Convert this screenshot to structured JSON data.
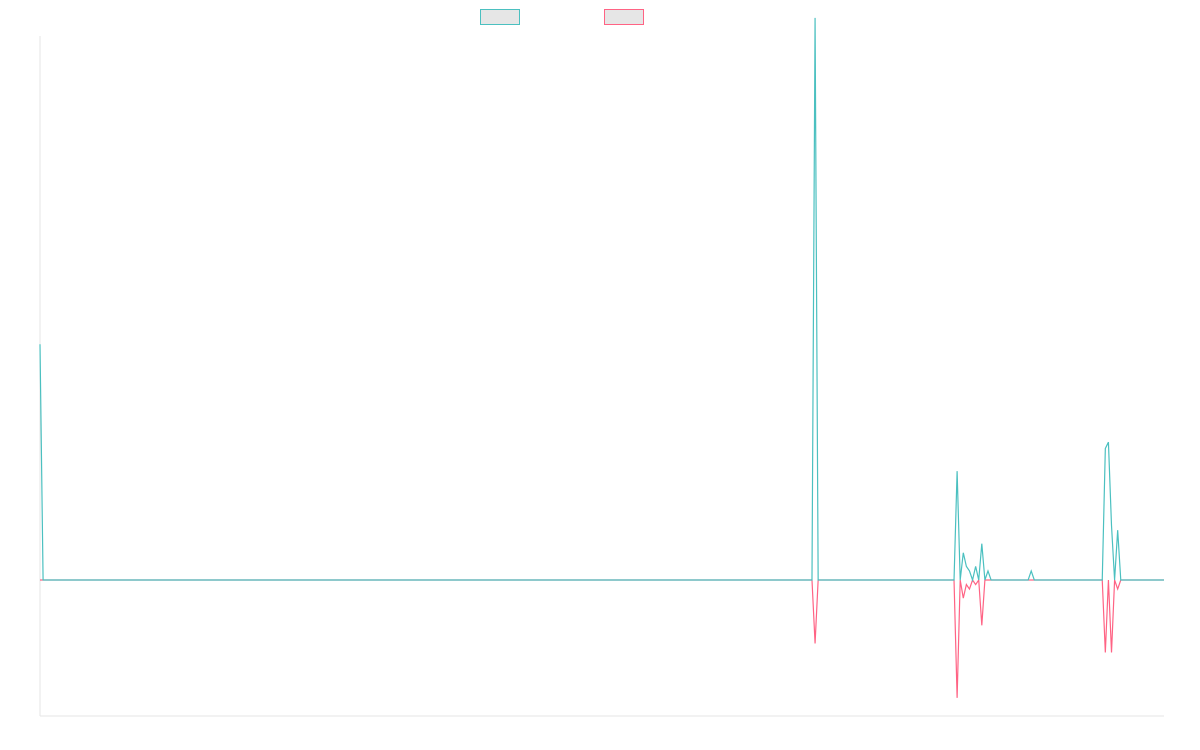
{
  "chart_data": {
    "type": "line",
    "title": "",
    "xlabel": "",
    "ylabel": "",
    "grid": false,
    "legend_position": "top-center",
    "x_count": 365,
    "ylim": [
      -15,
      60
    ],
    "series": [
      {
        "name": "",
        "color": "#4bc0c0",
        "fill": "#e6e6e6",
        "points": [
          [
            0,
            26
          ],
          [
            1,
            0
          ],
          [
            250,
            0
          ],
          [
            251,
            62
          ],
          [
            252,
            0
          ],
          [
            296,
            0
          ],
          [
            297,
            12
          ],
          [
            298,
            0
          ],
          [
            299,
            3
          ],
          [
            300,
            1.5
          ],
          [
            301,
            1
          ],
          [
            302,
            0
          ],
          [
            303,
            1.5
          ],
          [
            304,
            0
          ],
          [
            305,
            4
          ],
          [
            306,
            0
          ],
          [
            307,
            1
          ],
          [
            308,
            0
          ],
          [
            320,
            0
          ],
          [
            321,
            1
          ],
          [
            322,
            0
          ],
          [
            344,
            0
          ],
          [
            345,
            14.5
          ],
          [
            346,
            15.2
          ],
          [
            347,
            6
          ],
          [
            348,
            0
          ],
          [
            349,
            5.5
          ],
          [
            350,
            0
          ],
          [
            364,
            0
          ]
        ]
      },
      {
        "name": "",
        "color": "#ff6384",
        "fill": "#e6e6e6",
        "points": [
          [
            0,
            0
          ],
          [
            250,
            0
          ],
          [
            251,
            -7
          ],
          [
            252,
            0
          ],
          [
            296,
            0
          ],
          [
            297,
            -13
          ],
          [
            298,
            0
          ],
          [
            299,
            -2
          ],
          [
            300,
            -0.5
          ],
          [
            301,
            -1
          ],
          [
            302,
            0
          ],
          [
            303,
            -0.5
          ],
          [
            304,
            0
          ],
          [
            305,
            -5
          ],
          [
            306,
            0
          ],
          [
            307,
            0
          ],
          [
            320,
            0
          ],
          [
            321,
            0
          ],
          [
            322,
            0
          ],
          [
            344,
            0
          ],
          [
            345,
            -8
          ],
          [
            346,
            0
          ],
          [
            347,
            -8
          ],
          [
            348,
            0
          ],
          [
            349,
            -1
          ],
          [
            350,
            0
          ],
          [
            364,
            0
          ]
        ]
      }
    ]
  }
}
